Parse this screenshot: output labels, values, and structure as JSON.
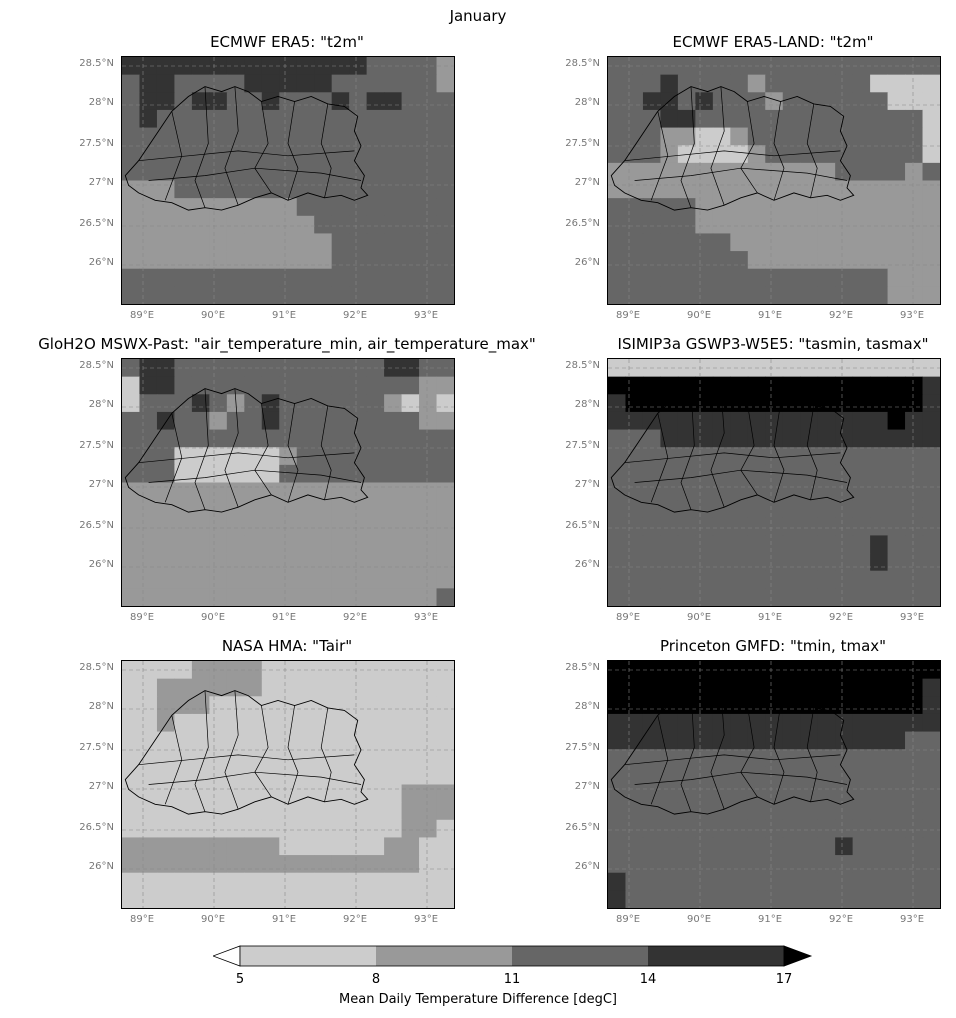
{
  "figure_title": "January",
  "panels": [
    {
      "title": "ECMWF ERA5: \"t2m\""
    },
    {
      "title": "ECMWF ERA5-LAND: \"t2m\""
    },
    {
      "title": "GloH2O MSWX-Past: \"air_temperature_min, air_temperature_max\""
    },
    {
      "title": "ISIMIP3a GSWP3-W5E5: \"tasmin, tasmax\""
    },
    {
      "title": "NASA HMA: \"Tair\""
    },
    {
      "title": "Princeton GMFD: \"tmin, tmax\""
    }
  ],
  "axes": {
    "lat_ticks": [
      "28.5°N",
      "28°N",
      "27.5°N",
      "27°N",
      "26.5°N",
      "26°N"
    ],
    "lon_ticks": [
      "89°E",
      "90°E",
      "91°E",
      "92°E",
      "93°E"
    ]
  },
  "colorbar": {
    "ticks": [
      "5",
      "8",
      "11",
      "14",
      "17"
    ],
    "label": "Mean Daily Temperature Difference [degC]",
    "colors": [
      "#ffffff",
      "#cccccc",
      "#999999",
      "#666666",
      "#333333",
      "#000000"
    ]
  },
  "chart_data": {
    "type": "heatmap",
    "title": "January",
    "colorbar_bins": [
      [
        null,
        5
      ],
      [
        5,
        8
      ],
      [
        8,
        11
      ],
      [
        11,
        14
      ],
      [
        14,
        17
      ],
      [
        17,
        null
      ]
    ],
    "extend": "both",
    "lat_range": [
      25.5,
      28.65
    ],
    "lon_range": [
      88.7,
      93.4
    ]
  }
}
